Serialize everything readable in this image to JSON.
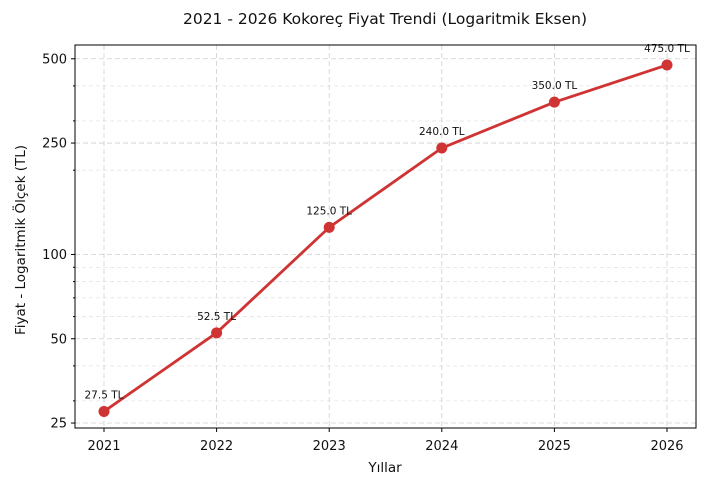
{
  "chart_data": {
    "type": "line",
    "title": "2021 - 2026 Kokoreç Fiyat Trendi (Logaritmik Eksen)",
    "xlabel": "Yıllar",
    "ylabel": "Fiyat - Logaritmik Ölçek (TL)",
    "y_scale": "log",
    "ylim": [
      24,
      560
    ],
    "grid": true,
    "x": [
      "2021",
      "2022",
      "2023",
      "2024",
      "2025",
      "2026"
    ],
    "y_ticks": [
      25,
      50,
      100,
      250,
      500
    ],
    "y_tick_labels": [
      "25",
      "50",
      "100",
      "250",
      "500"
    ],
    "series": [
      {
        "values": [
          27.5,
          52.5,
          125.0,
          240.0,
          350.0,
          475.0
        ],
        "data_labels": [
          "27.5 TL",
          "52.5 TL",
          "125.0 TL",
          "240.0 TL",
          "350.0 TL",
          "475.0 TL"
        ],
        "color": "#d03333"
      }
    ]
  }
}
